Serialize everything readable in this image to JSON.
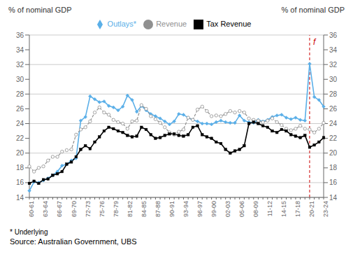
{
  "chart_data": {
    "type": "line",
    "y_label": "% of nominal GDP",
    "y2_label": "% of nominal GDP",
    "categories": [
      "60-61",
      null,
      null,
      "63-64",
      null,
      null,
      "66-67",
      null,
      null,
      "69-70",
      null,
      null,
      "72-73",
      null,
      null,
      "75-76",
      null,
      null,
      "78-79",
      null,
      null,
      "81-82",
      null,
      null,
      "84-85",
      null,
      null,
      "87-88",
      null,
      null,
      "90-91",
      null,
      null,
      "93-94",
      null,
      null,
      "96-97",
      null,
      null,
      "99-00",
      null,
      null,
      "02-03",
      null,
      null,
      "05-06",
      null,
      null,
      "08-09",
      null,
      null,
      "11-12",
      null,
      null,
      "14-15",
      null,
      null,
      "17-18",
      null,
      null,
      "20-21",
      null,
      null,
      "23-24"
    ],
    "series": [
      {
        "name": "Outlays*",
        "color": "#5aafe8",
        "marker": "diamond",
        "line_style": "solid",
        "values": [
          14.9,
          16.1,
          16.0,
          16.3,
          16.6,
          17.0,
          17.5,
          18.3,
          18.5,
          19.0,
          19.3,
          24.4,
          24.9,
          27.7,
          27.3,
          26.9,
          27.0,
          26.4,
          26.2,
          25.8,
          26.3,
          27.8,
          27.2,
          25.6,
          26.4,
          25.8,
          25.3,
          25.0,
          24.7,
          24.3,
          23.9,
          24.3,
          25.3,
          25.2,
          24.8,
          24.5,
          24.3,
          24.0,
          24.0,
          23.9,
          24.2,
          24.4,
          24.2,
          24.1,
          24.1,
          25.1,
          24.4,
          24.2,
          24.1,
          24.5,
          24.3,
          24.5,
          24.9,
          25.1,
          25.2,
          24.8,
          24.6,
          24.8,
          24.5,
          24.4,
          32.1,
          27.6,
          27.2,
          26.3
        ]
      },
      {
        "name": "Revenue",
        "color": "#909090",
        "marker": "circle",
        "line_style": "dashed",
        "values": [
          18.2,
          17.5,
          18.0,
          18.2,
          19.0,
          19.5,
          19.5,
          20.2,
          20.4,
          20.5,
          22.5,
          23.2,
          23.5,
          24.3,
          25.5,
          26.2,
          25.5,
          25.2,
          24.5,
          24.2,
          24.0,
          23.3,
          24.3,
          24.4,
          26.5,
          26.0,
          25.0,
          24.6,
          24.1,
          23.5,
          22.8,
          22.5,
          22.9,
          23.2,
          24.8,
          24.5,
          25.9,
          26.3,
          25.7,
          25.0,
          25.1,
          25.0,
          25.3,
          25.7,
          25.5,
          25.7,
          25.5,
          24.7,
          24.5,
          24.4,
          24.2,
          24.4,
          24.7,
          24.2,
          23.8,
          23.3,
          23.1,
          23.3,
          23.7,
          23.3,
          23.2,
          22.8,
          23.3,
          24.1
        ]
      },
      {
        "name": "Tax Revenue",
        "color": "#000000",
        "marker": "square",
        "line_style": "solid",
        "values": [
          15.9,
          16.2,
          15.9,
          16.4,
          16.5,
          17.0,
          17.2,
          17.5,
          18.5,
          18.8,
          19.5,
          20.5,
          21.0,
          20.6,
          21.5,
          22.2,
          23.0,
          23.5,
          23.3,
          23.0,
          22.8,
          22.4,
          22.2,
          22.3,
          23.5,
          23.2,
          22.5,
          22.0,
          22.1,
          22.4,
          22.6,
          22.6,
          22.4,
          22.3,
          22.5,
          23.5,
          23.7,
          22.5,
          22.2,
          22.0,
          21.5,
          21.3,
          20.5,
          20.0,
          20.3,
          20.5,
          21.0,
          24.0,
          24.2,
          24.0,
          23.7,
          23.5,
          23.0,
          22.8,
          23.2,
          23.0,
          22.5,
          22.3,
          22.1,
          22.4,
          20.8,
          21.1,
          21.5,
          22.1
        ]
      }
    ],
    "ylim": [
      14,
      36
    ],
    "yticks": [
      14,
      16,
      18,
      20,
      22,
      24,
      26,
      28,
      30,
      32,
      34,
      36
    ],
    "y2lim": [
      14,
      36
    ],
    "y2ticks": [
      14,
      16,
      18,
      20,
      22,
      24,
      26,
      28,
      30,
      32,
      34,
      36
    ],
    "grid": true,
    "legend": "top",
    "forecast": {
      "x": 60,
      "label": "f",
      "color": "#cc0000"
    },
    "note": "* Underlying",
    "source": "Source:  Australian Government, UBS"
  }
}
